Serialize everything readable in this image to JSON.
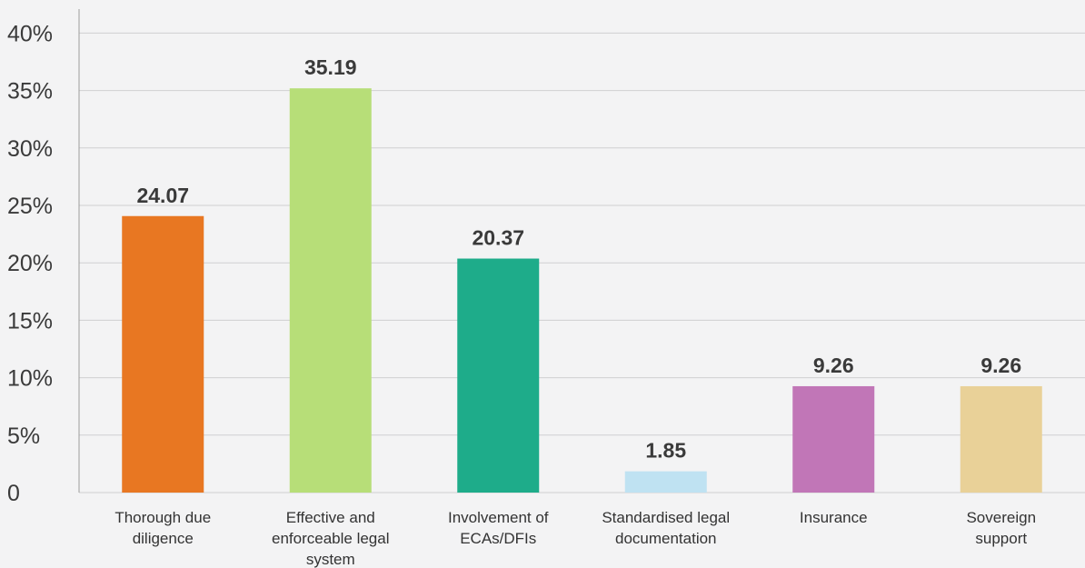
{
  "chart_data": {
    "type": "bar",
    "categories": [
      [
        "Thorough due",
        "diligence"
      ],
      [
        "Effective and",
        "enforceable legal",
        "system"
      ],
      [
        "Involvement of",
        "ECAs/DFIs"
      ],
      [
        "Standardised legal",
        "documentation"
      ],
      [
        "Insurance"
      ],
      [
        "Sovereign",
        "support"
      ]
    ],
    "values": [
      24.07,
      35.19,
      20.37,
      1.85,
      9.26,
      9.26
    ],
    "data_labels": [
      "24.07",
      "35.19",
      "20.37",
      "1.85",
      "9.26",
      "9.26"
    ],
    "colors": [
      "#e87722",
      "#b7de78",
      "#1eac8a",
      "#bfe2f2",
      "#c176b7",
      "#e9d198"
    ],
    "yticks": [
      {
        "value": 0,
        "label": "0"
      },
      {
        "value": 5,
        "label": "5%"
      },
      {
        "value": 10,
        "label": "10%"
      },
      {
        "value": 15,
        "label": "15%"
      },
      {
        "value": 20,
        "label": "20%"
      },
      {
        "value": 25,
        "label": "25%"
      },
      {
        "value": 30,
        "label": "30%"
      },
      {
        "value": 35,
        "label": "35%"
      },
      {
        "value": 40,
        "label": "40%"
      }
    ],
    "ylim": [
      0,
      42
    ],
    "grid": true,
    "title": "",
    "xlabel": "",
    "ylabel": ""
  }
}
